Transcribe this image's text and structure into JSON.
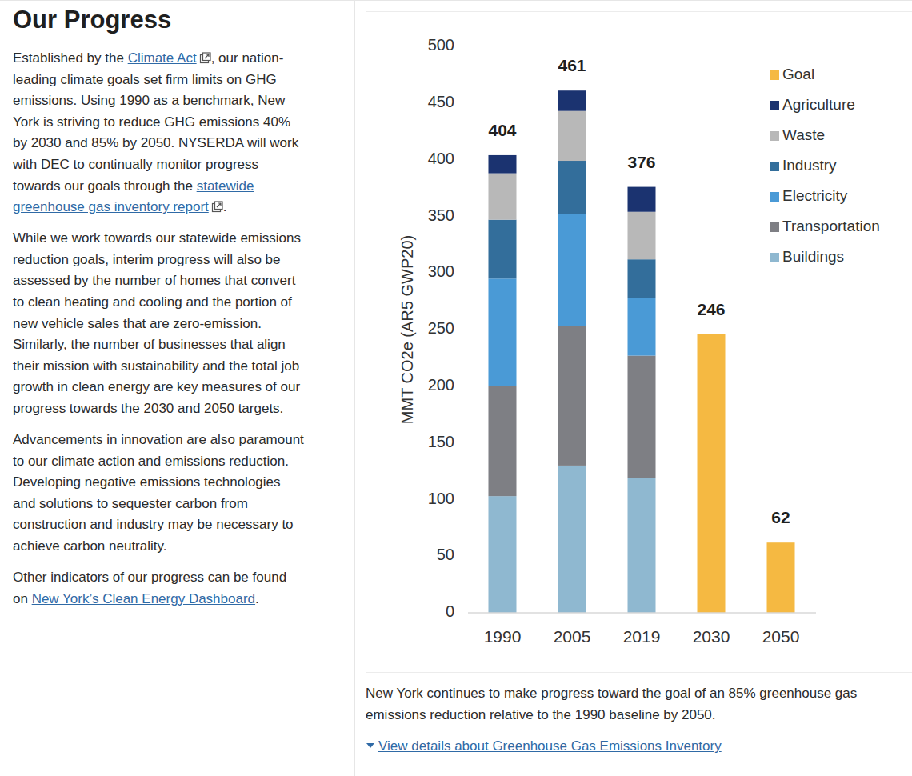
{
  "page": {
    "title": "Our Progress",
    "paragraphs": [
      [
        [
          {
            "text": "Established by the "
          },
          {
            "text": "Climate Act",
            "link": true,
            "external": true
          },
          {
            "text": ", our nation-"
          }
        ],
        [
          {
            "text": "leading climate goals set firm limits on GHG"
          }
        ],
        [
          {
            "text": "emissions. Using 1990 as a benchmark, New"
          }
        ],
        [
          {
            "text": "York is striving to reduce GHG emissions 40%"
          }
        ],
        [
          {
            "text": "by 2030 and 85% by 2050. NYSERDA will work"
          }
        ],
        [
          {
            "text": "with DEC to continually monitor progress"
          }
        ],
        [
          {
            "text": "towards our goals through the "
          },
          {
            "text": "statewide",
            "link": true
          }
        ],
        [
          {
            "text": "greenhouse gas inventory report",
            "link": true,
            "external": true
          },
          {
            "text": "."
          }
        ]
      ],
      [
        [
          {
            "text": "While we work towards our statewide emissions"
          }
        ],
        [
          {
            "text": "reduction goals, interim progress will also be"
          }
        ],
        [
          {
            "text": "assessed by the number of homes that convert"
          }
        ],
        [
          {
            "text": "to clean heating and cooling and the portion of"
          }
        ],
        [
          {
            "text": "new vehicle sales that are zero-emission."
          }
        ],
        [
          {
            "text": "Similarly, the number of businesses that align"
          }
        ],
        [
          {
            "text": "their mission with sustainability and the total job"
          }
        ],
        [
          {
            "text": "growth in clean energy are key measures of our"
          }
        ],
        [
          {
            "text": "progress towards the 2030 and 2050 targets."
          }
        ]
      ],
      [
        [
          {
            "text": "Advancements in innovation are also paramount"
          }
        ],
        [
          {
            "text": "to our climate action and emissions reduction."
          }
        ],
        [
          {
            "text": "Developing negative emissions technologies"
          }
        ],
        [
          {
            "text": "and solutions to sequester carbon from"
          }
        ],
        [
          {
            "text": "construction and industry may be necessary to"
          }
        ],
        [
          {
            "text": "achieve carbon neutrality."
          }
        ]
      ],
      [
        [
          {
            "text": "Other indicators of our progress can be found"
          }
        ],
        [
          {
            "text": "on "
          },
          {
            "text": "New York’s Clean Energy Dashboard",
            "link": true
          },
          {
            "text": "."
          }
        ]
      ]
    ],
    "caption": [
      "New York continues to make progress toward the goal of an 85% greenhouse gas",
      "emissions reduction relative to the 1990 baseline by 2050."
    ],
    "details_link": "View details about Greenhouse Gas Emissions Inventory"
  },
  "chart_data": {
    "type": "bar",
    "stacked": true,
    "ylabel": "MMT CO2e (AR5 GWP20)",
    "categories": [
      "1990",
      "2005",
      "2019",
      "2030",
      "2050"
    ],
    "series": [
      {
        "name": "Buildings",
        "color": "#8fb8d0",
        "values": [
          103,
          130,
          119,
          null,
          null
        ]
      },
      {
        "name": "Transportation",
        "color": "#7e7f84",
        "values": [
          97,
          123,
          108,
          null,
          null
        ]
      },
      {
        "name": "Electricity",
        "color": "#4a9ad6",
        "values": [
          95,
          99,
          51,
          null,
          null
        ]
      },
      {
        "name": "Industry",
        "color": "#336e9b",
        "values": [
          52,
          47,
          34,
          null,
          null
        ]
      },
      {
        "name": "Waste",
        "color": "#b8b8b8",
        "values": [
          41,
          44,
          42,
          null,
          null
        ]
      },
      {
        "name": "Agriculture",
        "color": "#1b3370",
        "values": [
          16,
          18,
          22,
          null,
          null
        ]
      },
      {
        "name": "Goal",
        "color": "#f5b942",
        "values": [
          null,
          null,
          null,
          246,
          62
        ]
      }
    ],
    "totals": [
      404,
      461,
      376,
      246,
      62
    ],
    "ylim": [
      0,
      500
    ],
    "yticks": [
      0,
      50,
      100,
      150,
      200,
      250,
      300,
      350,
      400,
      450,
      500
    ],
    "grid": false,
    "legend": "top-right"
  }
}
